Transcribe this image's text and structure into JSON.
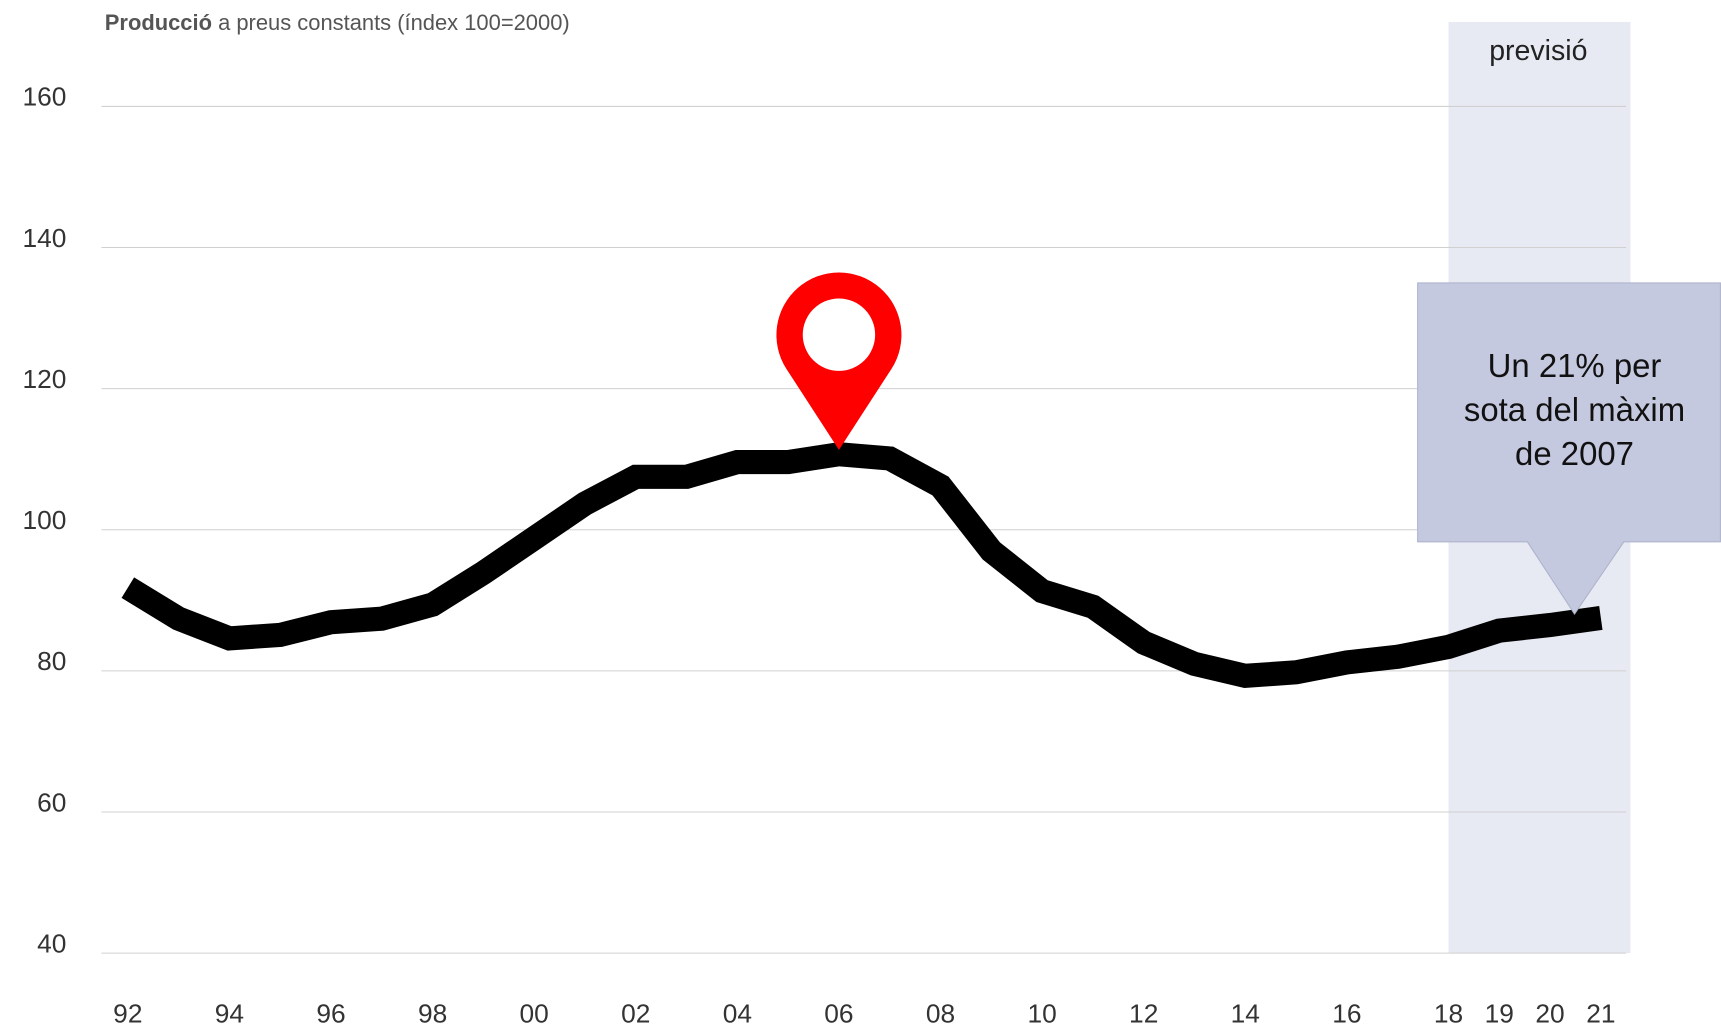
{
  "chart_data": {
    "type": "line",
    "title_bold": "Producció",
    "title": "a preus constants (índex 100=2000)",
    "categories": [
      "92",
      null,
      "94",
      null,
      "96",
      null,
      "98",
      null,
      "00",
      null,
      "02",
      null,
      "04",
      null,
      "06",
      null,
      "08",
      null,
      "10",
      null,
      "12",
      null,
      "14",
      null,
      "16",
      null,
      "18",
      "19",
      "20",
      "21"
    ],
    "values": [
      91.8,
      87.4,
      84.6,
      85.1,
      86.9,
      87.4,
      89.4,
      93.9,
      98.8,
      103.7,
      107.5,
      107.5,
      109.6,
      109.6,
      110.7,
      110.1,
      106.2,
      97.0,
      91.3,
      89.1,
      84.0,
      81.0,
      79.3,
      79.8,
      81.2,
      82.0,
      83.4,
      85.7,
      86.5,
      87.5
    ],
    "color": "#000000",
    "ylim": [
      40,
      160
    ],
    "yticks": [
      40,
      60,
      80,
      100,
      120,
      140,
      160
    ],
    "grid": true,
    "forecast": {
      "label": "previsió",
      "start": "18",
      "color": "#e8eaf3"
    },
    "marker": {
      "at": "06",
      "color": "#ff0000"
    },
    "callout": {
      "lines": [
        "Un 21% per",
        "sota del màxim",
        "de 2007"
      ],
      "at": "21",
      "color": "#c5c9e0"
    }
  }
}
